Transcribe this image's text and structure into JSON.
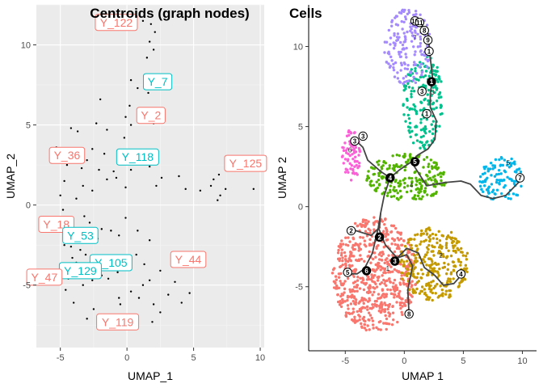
{
  "chart_data": [
    {
      "type": "scatter",
      "title": "Centroids (graph nodes)",
      "xlabel": "UMAP_1",
      "ylabel": "UMAP_2",
      "xlim": [
        -6.8,
        10.3
      ],
      "ylim": [
        -8.9,
        12.5
      ],
      "xticks": [
        -5,
        0,
        5,
        10
      ],
      "yticks": [
        -5,
        0,
        5,
        10
      ],
      "x_tick_labels": [
        "-5",
        "0",
        "5",
        "10"
      ],
      "y_tick_labels": [
        "-5",
        "0",
        "5",
        "10"
      ],
      "grid": true,
      "points": [
        [
          1.2,
          11.5
        ],
        [
          1.8,
          11.3
        ],
        [
          2.1,
          10.8
        ],
        [
          1.7,
          10.2
        ],
        [
          2.0,
          9.7
        ],
        [
          1.5,
          9.2
        ],
        [
          0.3,
          7.8
        ],
        [
          0.8,
          7.3
        ],
        [
          1.6,
          7.0
        ],
        [
          -2.0,
          6.6
        ],
        [
          0.2,
          6.2
        ],
        [
          -0.1,
          5.5
        ],
        [
          0.3,
          5.0
        ],
        [
          -4.2,
          4.8
        ],
        [
          -2.3,
          5.1
        ],
        [
          -3.7,
          4.6
        ],
        [
          -1.5,
          4.7
        ],
        [
          2.0,
          5.1
        ],
        [
          -0.2,
          4.2
        ],
        [
          -4.0,
          3.4
        ],
        [
          -2.6,
          3.5
        ],
        [
          -5.3,
          3.6
        ],
        [
          -3.0,
          2.8
        ],
        [
          -1.7,
          3.2
        ],
        [
          -4.5,
          2.5
        ],
        [
          -3.4,
          2.3
        ],
        [
          -2.1,
          2.2
        ],
        [
          -4.7,
          1.5
        ],
        [
          -1.5,
          1.6
        ],
        [
          -5.0,
          0.6
        ],
        [
          -3.3,
          1.2
        ],
        [
          -1.0,
          2.1
        ],
        [
          -0.8,
          1.7
        ],
        [
          0.3,
          2.2
        ],
        [
          1.7,
          2.4
        ],
        [
          2.6,
          1.7
        ],
        [
          3.9,
          1.8
        ],
        [
          4.4,
          1.0
        ],
        [
          2.2,
          1.2
        ],
        [
          -2.6,
          0.9
        ],
        [
          -3.8,
          0.4
        ],
        [
          -0.1,
          1.1
        ],
        [
          5.5,
          0.9
        ],
        [
          6.5,
          1.6
        ],
        [
          6.9,
          1.9
        ],
        [
          7.4,
          1.0
        ],
        [
          7.0,
          0.6
        ],
        [
          6.3,
          1.2
        ],
        [
          9.5,
          1.0
        ],
        [
          6.8,
          0.3
        ],
        [
          -4.8,
          -0.3
        ],
        [
          -4.3,
          -0.9
        ],
        [
          -3.4,
          -1.9
        ],
        [
          -2.8,
          -1.1
        ],
        [
          -1.9,
          -1.5
        ],
        [
          -3.2,
          -0.7
        ],
        [
          -2.2,
          -2.1
        ],
        [
          -1.2,
          -1.6
        ],
        [
          -0.6,
          -1.9
        ],
        [
          -0.1,
          -0.8
        ],
        [
          0.8,
          -1.6
        ],
        [
          1.7,
          -2.2
        ],
        [
          -4.7,
          -2.5
        ],
        [
          -4.2,
          -2.6
        ],
        [
          -3.5,
          -2.8
        ],
        [
          -4.1,
          -3.3
        ],
        [
          -3.8,
          -3.6
        ],
        [
          -3.1,
          -3.1
        ],
        [
          -2.8,
          -3.8
        ],
        [
          -3.9,
          -4.3
        ],
        [
          -4.4,
          -4.6
        ],
        [
          -3.3,
          -5.0
        ],
        [
          -4.6,
          -5.3
        ],
        [
          -2.6,
          -4.7
        ],
        [
          -1.9,
          -4.4
        ],
        [
          -2.3,
          -3.5
        ],
        [
          -1.4,
          -4.6
        ],
        [
          -0.7,
          -4.2
        ],
        [
          0.7,
          -3.1
        ],
        [
          1.3,
          -3.7
        ],
        [
          1.7,
          -4.7
        ],
        [
          2.5,
          -4.1
        ],
        [
          1.2,
          -5.0
        ],
        [
          0.3,
          -5.4
        ],
        [
          0.9,
          -5.8
        ],
        [
          -0.6,
          -5.8
        ],
        [
          2.0,
          -6.2
        ],
        [
          3.1,
          -5.6
        ],
        [
          3.6,
          -4.8
        ],
        [
          4.7,
          -5.5
        ],
        [
          4.1,
          -6.1
        ],
        [
          -4.0,
          -6.1
        ],
        [
          -2.5,
          -6.5
        ],
        [
          -0.5,
          -6.2
        ],
        [
          0.5,
          -6.9
        ],
        [
          2.5,
          -6.7
        ],
        [
          -3.0,
          -7.1
        ],
        [
          1.9,
          -7.3
        ]
      ],
      "labels": [
        {
          "text": "Y_122",
          "x": -0.8,
          "y": 11.4,
          "color": "#F8766D"
        },
        {
          "text": "Y_7",
          "x": 2.3,
          "y": 7.7,
          "color": "#00BFC4"
        },
        {
          "text": "Y_2",
          "x": 1.8,
          "y": 5.6,
          "color": "#F8766D"
        },
        {
          "text": "Y_36",
          "x": -4.5,
          "y": 3.1,
          "color": "#F8766D"
        },
        {
          "text": "Y_118",
          "x": 0.8,
          "y": 3.0,
          "color": "#00BFC4"
        },
        {
          "text": "Y_125",
          "x": 8.9,
          "y": 2.6,
          "color": "#F8766D"
        },
        {
          "text": "Y_18",
          "x": -5.3,
          "y": -1.2,
          "color": "#F8766D"
        },
        {
          "text": "Y_53",
          "x": -3.5,
          "y": -1.9,
          "color": "#00BFC4"
        },
        {
          "text": "Y_105",
          "x": -1.2,
          "y": -3.6,
          "color": "#00BFC4"
        },
        {
          "text": "Y_44",
          "x": 4.6,
          "y": -3.4,
          "color": "#F8766D"
        },
        {
          "text": "Y_129",
          "x": -3.5,
          "y": -4.1,
          "color": "#00BFC4"
        },
        {
          "text": "Y_47",
          "x": -6.2,
          "y": -4.5,
          "color": "#F8766D"
        },
        {
          "text": "Y_119",
          "x": -0.7,
          "y": -7.3,
          "color": "#F8766D"
        }
      ]
    },
    {
      "type": "scatter",
      "title": "Cells",
      "xlabel": "UMAP 1",
      "ylabel": "UMAP 2",
      "xlim": [
        -8.1,
        11.2
      ],
      "ylim": [
        -9.0,
        12.6
      ],
      "xticks": [
        -5,
        0,
        5,
        10
      ],
      "yticks": [
        -5,
        0,
        5,
        10
      ],
      "x_tick_labels": [
        "-5",
        "0",
        "5",
        "10"
      ],
      "y_tick_labels": [
        "-5",
        "0",
        "5",
        "10"
      ],
      "grid": false,
      "clusters": [
        {
          "id": "1",
          "color": "#F8766D",
          "cx": -2.5,
          "cy": -4.2,
          "rx": 3.6,
          "ry": 3.6,
          "n": 650,
          "label_x": -1.4,
          "label_y": -4.0
        },
        {
          "id": "2",
          "color": "#C49A00",
          "cx": 2.5,
          "cy": -3.6,
          "rx": 3.0,
          "ry": 2.3,
          "n": 300,
          "label_x": 3.1,
          "label_y": -3.2
        },
        {
          "id": "3",
          "color": "#00C08B",
          "cx": 1.6,
          "cy": 6.6,
          "rx": 1.7,
          "ry": 3.0,
          "n": 200,
          "label_x": 2.4,
          "label_y": 7.0
        },
        {
          "id": "4",
          "color": "#53B400",
          "cx": 0.2,
          "cy": 1.8,
          "rx": 3.4,
          "ry": 1.5,
          "n": 230,
          "label_x": 0.6,
          "label_y": 1.2
        },
        {
          "id": "5",
          "color": "#00B6EB",
          "cx": 8.3,
          "cy": 1.7,
          "rx": 2.0,
          "ry": 1.4,
          "n": 110,
          "label_x": 8.8,
          "label_y": 2.6
        },
        {
          "id": "6",
          "color": "#FB61D7",
          "cx": -4.5,
          "cy": 3.2,
          "rx": 0.8,
          "ry": 1.6,
          "n": 70,
          "label_x": -4.6,
          "label_y": 3.4
        },
        {
          "id": "7",
          "color": "#A58AFF",
          "cx": 0.3,
          "cy": 10.0,
          "rx": 2.0,
          "ry": 2.4,
          "n": 170,
          "label_x": 0.9,
          "label_y": 10.4
        }
      ],
      "trajectory": [
        [
          [
            1.1,
            11.6
          ],
          [
            1.5,
            11.3
          ],
          [
            2.0,
            10.8
          ],
          [
            2.1,
            10.1
          ],
          [
            2.2,
            9.3
          ],
          [
            2.4,
            8.0
          ],
          [
            2.2,
            7.1
          ],
          [
            2.2,
            6.2
          ],
          [
            2.7,
            5.4
          ],
          [
            2.6,
            4.2
          ],
          [
            2.0,
            3.6
          ],
          [
            1.1,
            3.2
          ],
          [
            0.6,
            2.8
          ],
          [
            -0.4,
            2.3
          ],
          [
            -1.2,
            1.8
          ],
          [
            -1.7,
            0.7
          ],
          [
            -2.0,
            -0.4
          ],
          [
            -2.1,
            -1.3
          ],
          [
            -2.8,
            -1.8
          ],
          [
            -4.1,
            -1.5
          ],
          [
            -4.5,
            -1.6
          ]
        ],
        [
          [
            -1.2,
            1.8
          ],
          [
            -2.0,
            2.2
          ],
          [
            -3.1,
            2.9
          ],
          [
            -3.5,
            3.7
          ],
          [
            -4.2,
            4.2
          ]
        ],
        [
          [
            0.6,
            2.8
          ],
          [
            1.9,
            1.3
          ],
          [
            3.4,
            1.5
          ],
          [
            4.8,
            1.6
          ],
          [
            5.6,
            1.4
          ],
          [
            6.5,
            0.7
          ],
          [
            7.5,
            0.5
          ],
          [
            8.6,
            0.7
          ],
          [
            9.8,
            1.6
          ]
        ],
        [
          [
            -2.0,
            -0.4
          ],
          [
            -2.2,
            -1.3
          ],
          [
            -2.7,
            -2.9
          ],
          [
            -3.4,
            -3.9
          ],
          [
            -4.0,
            -4.2
          ],
          [
            -5.1,
            -4.2
          ]
        ],
        [
          [
            -2.2,
            -1.3
          ],
          [
            -1.6,
            -2.4
          ],
          [
            -0.6,
            -3.2
          ],
          [
            0.2,
            -3.0
          ],
          [
            0.7,
            -3.7
          ],
          [
            0.3,
            -5.2
          ],
          [
            0.4,
            -6.7
          ]
        ],
        [
          [
            -0.6,
            -3.2
          ],
          [
            0.2,
            -2.6
          ],
          [
            1.2,
            -2.9
          ],
          [
            1.7,
            -3.8
          ],
          [
            2.6,
            -4.3
          ],
          [
            3.3,
            -4.9
          ],
          [
            4.2,
            -4.8
          ],
          [
            4.8,
            -4.3
          ]
        ]
      ],
      "nodes": [
        {
          "label": "10",
          "x": 0.9,
          "y": 11.6,
          "style": "circle"
        },
        {
          "label": "11",
          "x": 1.3,
          "y": 11.5,
          "style": "circle"
        },
        {
          "label": "8",
          "x": 1.7,
          "y": 11.0,
          "style": "circle"
        },
        {
          "label": "9",
          "x": 2.0,
          "y": 10.4,
          "style": "circle"
        },
        {
          "label": "1",
          "x": 2.1,
          "y": 9.7,
          "style": "circle"
        },
        {
          "label": "1",
          "x": 2.3,
          "y": 7.8,
          "style": "filled"
        },
        {
          "label": "3",
          "x": 1.5,
          "y": 7.2,
          "style": "circle"
        },
        {
          "label": "1",
          "x": 1.9,
          "y": 5.8,
          "style": "circle"
        },
        {
          "label": "3",
          "x": -3.5,
          "y": 4.4,
          "style": "circle"
        },
        {
          "label": "3",
          "x": -4.2,
          "y": 4.1,
          "style": "circle"
        },
        {
          "label": "5",
          "x": 0.9,
          "y": 2.8,
          "style": "filled"
        },
        {
          "label": "4",
          "x": -1.2,
          "y": 1.8,
          "style": "filled"
        },
        {
          "label": "7",
          "x": 9.8,
          "y": 1.8,
          "style": "circle"
        },
        {
          "label": "2",
          "x": -4.5,
          "y": -1.5,
          "style": "circle"
        },
        {
          "label": "2",
          "x": -2.1,
          "y": -1.9,
          "style": "filled"
        },
        {
          "label": "3",
          "x": -0.8,
          "y": -3.4,
          "style": "filled"
        },
        {
          "label": "6",
          "x": -3.2,
          "y": -4.0,
          "style": "filled"
        },
        {
          "label": "5",
          "x": -4.8,
          "y": -4.1,
          "style": "circle"
        },
        {
          "label": "4",
          "x": 4.8,
          "y": -4.2,
          "style": "circle"
        },
        {
          "label": "8",
          "x": 0.4,
          "y": -6.7,
          "style": "circle"
        }
      ]
    }
  ]
}
